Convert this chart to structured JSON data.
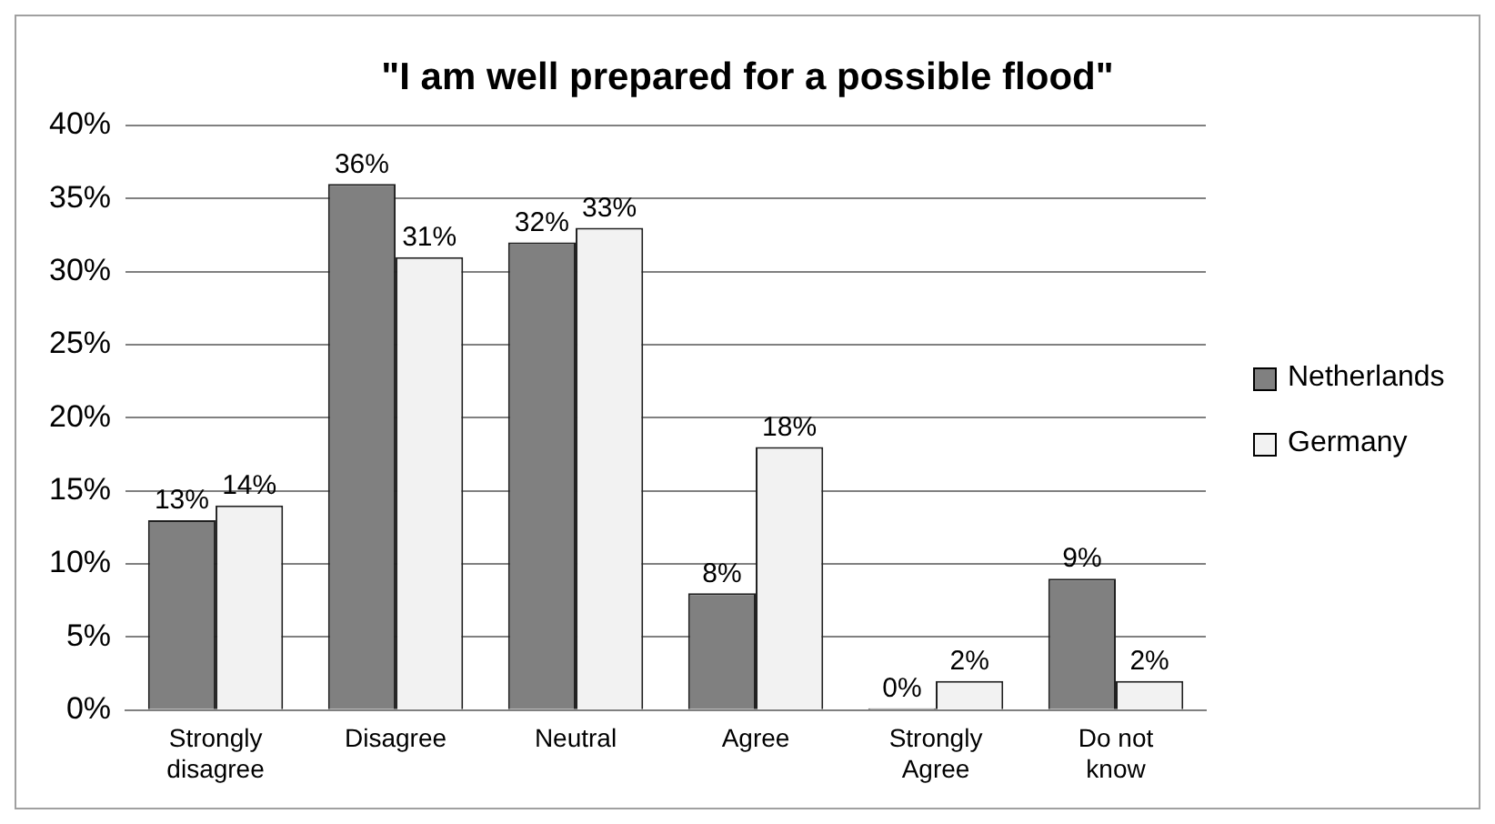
{
  "chart_data": {
    "type": "bar",
    "title": "\"I am well prepared for a possible flood\"",
    "categories": [
      "Strongly disagree",
      "Disagree",
      "Neutral",
      "Agree",
      "Strongly Agree",
      "Do not know"
    ],
    "series": [
      {
        "name": "Netherlands",
        "color": "#808080",
        "values": [
          13,
          36,
          32,
          8,
          0,
          9
        ],
        "value_labels": [
          "13%",
          "36%",
          "32%",
          "8%",
          "0%",
          "9%"
        ]
      },
      {
        "name": "Germany",
        "color": "#f2f2f2",
        "values": [
          14,
          31,
          33,
          18,
          2,
          2
        ],
        "value_labels": [
          "14%",
          "31%",
          "33%",
          "18%",
          "2%",
          "2%"
        ]
      }
    ],
    "ylim": [
      0,
      40
    ],
    "yticks": [
      {
        "value": 0,
        "label": "0%"
      },
      {
        "value": 5,
        "label": "5%"
      },
      {
        "value": 10,
        "label": "10%"
      },
      {
        "value": 15,
        "label": "15%"
      },
      {
        "value": 20,
        "label": "20%"
      },
      {
        "value": 25,
        "label": "25%"
      },
      {
        "value": 30,
        "label": "30%"
      },
      {
        "value": 35,
        "label": "35%"
      },
      {
        "value": 40,
        "label": "40%"
      }
    ],
    "grid": "y",
    "legend": "right"
  }
}
